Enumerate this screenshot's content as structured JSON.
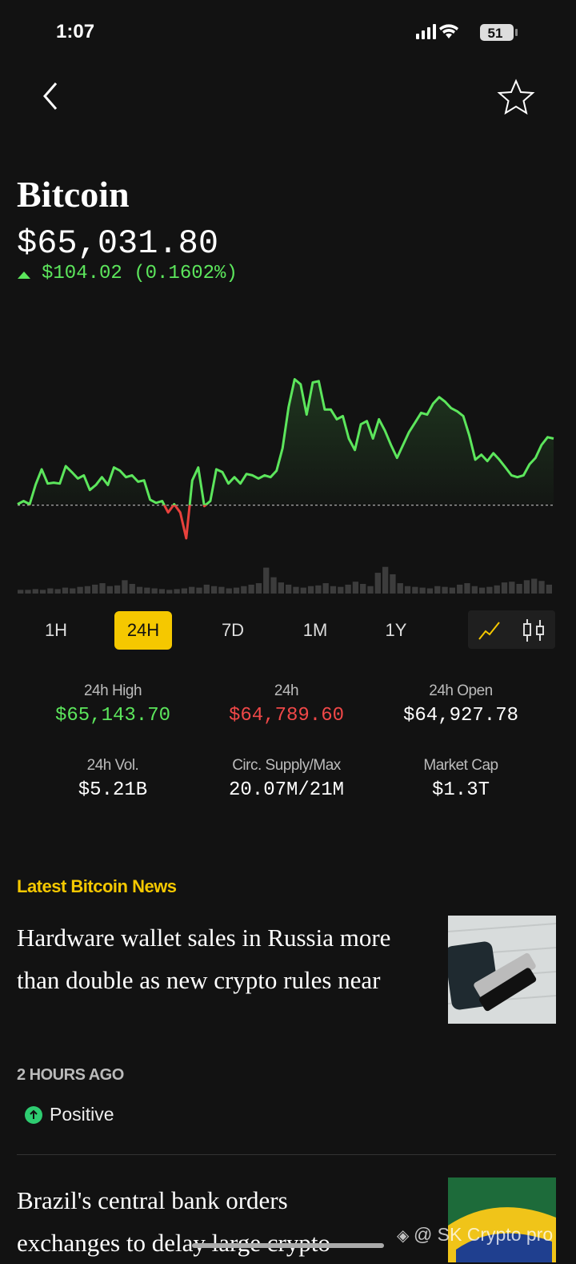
{
  "status_bar": {
    "time": "1:07",
    "battery": "51"
  },
  "coin": {
    "name": "Bitcoin",
    "price": "$65,031.80",
    "change": "$104.02 (0.1602%)"
  },
  "chart_data": {
    "type": "line",
    "values": [
      64868,
      64875,
      64868,
      64911,
      64944,
      64913,
      64915,
      64913,
      64951,
      64938,
      64924,
      64931,
      64899,
      64910,
      64927,
      64910,
      64948,
      64941,
      64927,
      64931,
      64917,
      64920,
      64878,
      64871,
      64875,
      64850,
      64868,
      64850,
      64794,
      64920,
      64948,
      64864,
      64875,
      64944,
      64938,
      64913,
      64927,
      64913,
      64934,
      64931,
      64924,
      64931,
      64927,
      64941,
      64990,
      65080,
      65140,
      65129,
      65063,
      65133,
      65136,
      65074,
      65074,
      65053,
      65060,
      65011,
      64986,
      65042,
      65049,
      65011,
      65053,
      65028,
      64997,
      64969,
      64997,
      65025,
      65046,
      65067,
      65063,
      65087,
      65101,
      65091,
      65077,
      65070,
      65060,
      65018,
      64965,
      64976,
      64962,
      64979,
      64965,
      64948,
      64931,
      64927,
      64931,
      64955,
      64969,
      64997,
      65014,
      65011
    ],
    "color": "#5ce65c",
    "negative_color": "#e8413c",
    "baseline": 64866,
    "ylim": [
      64780,
      65160
    ],
    "volume": {
      "values": [
        5,
        5,
        6,
        5,
        7,
        6,
        8,
        7,
        9,
        10,
        12,
        14,
        10,
        11,
        18,
        13,
        9,
        8,
        7,
        6,
        5,
        6,
        7,
        9,
        8,
        12,
        10,
        9,
        7,
        8,
        10,
        12,
        14,
        35,
        22,
        15,
        12,
        9,
        8,
        10,
        11,
        14,
        10,
        9,
        12,
        16,
        13,
        10,
        28,
        36,
        26,
        14,
        10,
        9,
        8,
        7,
        10,
        9,
        8,
        12,
        14,
        10,
        8,
        9,
        11,
        15,
        16,
        13,
        18,
        20,
        17,
        12
      ],
      "color": "#3c3c3c",
      "ylim": [
        0,
        40
      ]
    }
  },
  "timeframes": {
    "options": [
      "1H",
      "24H",
      "7D",
      "1M",
      "1Y"
    ],
    "selected": 1
  },
  "stats": [
    {
      "label": "24h High",
      "value": "$65,143.70",
      "color": "#5ce65c"
    },
    {
      "label": "24h",
      "value": "$64,789.60",
      "color": "#f04848"
    },
    {
      "label": "24h Open",
      "value": "$64,927.78",
      "color": "#ffffff"
    },
    {
      "label": "24h Vol.",
      "value": "$5.21B",
      "color": "#ffffff"
    },
    {
      "label": "Circ. Supply/Max",
      "value": "20.07M/21M",
      "color": "#ffffff"
    },
    {
      "label": "Market Cap",
      "value": "$1.3T",
      "color": "#ffffff"
    }
  ],
  "news": {
    "heading": "Latest Bitcoin News",
    "articles": [
      {
        "title": "Hardware wallet sales in Russia more than double as new crypto rules near",
        "time": "2 HOURS AGO",
        "sentiment": "Positive"
      },
      {
        "title": "Brazil's central bank orders exchanges to delay large crypto"
      }
    ]
  },
  "watermark": "@ SK Crypto pro"
}
